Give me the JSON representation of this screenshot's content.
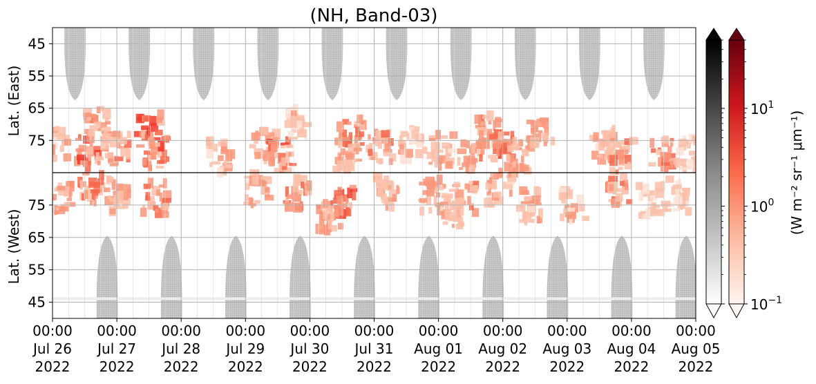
{
  "chart_data": {
    "type": "heatmap",
    "title": "(NH, Band-03)",
    "ylabel_top": "Lat. (East)",
    "ylabel_bottom": "Lat. (West)",
    "x_ticks": [
      {
        "time": "00:00",
        "date": "Jul 26",
        "year": "2022"
      },
      {
        "time": "00:00",
        "date": "Jul 27",
        "year": "2022"
      },
      {
        "time": "00:00",
        "date": "Jul 28",
        "year": "2022"
      },
      {
        "time": "00:00",
        "date": "Jul 29",
        "year": "2022"
      },
      {
        "time": "00:00",
        "date": "Jul 30",
        "year": "2022"
      },
      {
        "time": "00:00",
        "date": "Jul 31",
        "year": "2022"
      },
      {
        "time": "00:00",
        "date": "Aug 01",
        "year": "2022"
      },
      {
        "time": "00:00",
        "date": "Aug 02",
        "year": "2022"
      },
      {
        "time": "00:00",
        "date": "Aug 03",
        "year": "2022"
      },
      {
        "time": "00:00",
        "date": "Aug 04",
        "year": "2022"
      },
      {
        "time": "00:00",
        "date": "Aug 05",
        "year": "2022"
      }
    ],
    "x_range": [
      "2022-07-26 00:00",
      "2022-08-05 00:00"
    ],
    "y_top_ticks": [
      "45",
      "55",
      "65",
      "75"
    ],
    "y_bottom_ticks": [
      "75",
      "65",
      "55",
      "45"
    ],
    "y_top_range": [
      40,
      85
    ],
    "y_bottom_range": [
      85,
      40
    ],
    "colorbar_gray_label": "",
    "colorbar_red_label": "(W m⁻² sr⁻¹ μm⁻¹)",
    "colorbar_scale": "log",
    "colorbar_range": [
      0.1,
      50
    ],
    "colorbar_ticks": [
      {
        "base": "10",
        "exp": "−1",
        "value": 0.1
      },
      {
        "base": "10",
        "exp": "0",
        "value": 1
      },
      {
        "base": "10",
        "exp": "1",
        "value": 10
      }
    ],
    "colors": {
      "gray_fill": "#c8c8c8",
      "red_high": "#e8321f",
      "red_mid": "#f88a6f",
      "red_low": "#fde0d3",
      "gray_cb_top": "#000000",
      "red_cb_top": "#67000d",
      "grid": "#b0b0b0"
    },
    "grid": true,
    "east_gray_lobes_day_offsets": [
      0.35,
      1.35,
      2.35,
      3.35,
      4.35,
      5.35,
      6.35,
      7.35,
      8.35,
      9.35
    ],
    "west_gray_lobes_day_offsets": [
      0.85,
      1.85,
      2.85,
      3.85,
      4.85,
      5.85,
      6.85,
      7.85,
      8.85,
      9.85
    ],
    "east_emission_clusters": [
      {
        "day": 0.05,
        "lat": 76,
        "intensity": 0.45
      },
      {
        "day": 0.55,
        "lat": 79,
        "intensity": 0.85
      },
      {
        "day": 0.7,
        "lat": 70,
        "intensity": 0.6
      },
      {
        "day": 1.0,
        "lat": 78,
        "intensity": 0.6
      },
      {
        "day": 1.5,
        "lat": 72,
        "intensity": 1.0
      },
      {
        "day": 1.6,
        "lat": 79,
        "intensity": 0.75
      },
      {
        "day": 2.6,
        "lat": 80,
        "intensity": 0.55
      },
      {
        "day": 3.3,
        "lat": 77,
        "intensity": 0.5
      },
      {
        "day": 3.55,
        "lat": 80,
        "intensity": 0.75
      },
      {
        "day": 3.8,
        "lat": 70,
        "intensity": 0.4
      },
      {
        "day": 4.6,
        "lat": 79,
        "intensity": 0.55
      },
      {
        "day": 4.65,
        "lat": 73,
        "intensity": 0.7
      },
      {
        "day": 5.1,
        "lat": 77,
        "intensity": 0.6
      },
      {
        "day": 5.6,
        "lat": 76,
        "intensity": 0.4
      },
      {
        "day": 6.05,
        "lat": 78,
        "intensity": 0.5
      },
      {
        "day": 6.5,
        "lat": 79,
        "intensity": 0.55
      },
      {
        "day": 6.75,
        "lat": 72,
        "intensity": 0.6
      },
      {
        "day": 7.0,
        "lat": 77,
        "intensity": 0.75
      },
      {
        "day": 7.25,
        "lat": 80,
        "intensity": 0.55
      },
      {
        "day": 7.6,
        "lat": 73,
        "intensity": 0.5
      },
      {
        "day": 8.6,
        "lat": 76,
        "intensity": 0.5
      },
      {
        "day": 8.85,
        "lat": 80,
        "intensity": 0.6
      },
      {
        "day": 9.5,
        "lat": 79,
        "intensity": 0.7
      },
      {
        "day": 9.9,
        "lat": 79,
        "intensity": 0.35
      }
    ],
    "west_emission_clusters": [
      {
        "day": 0.1,
        "lat": 77,
        "intensity": 0.55
      },
      {
        "day": 0.6,
        "lat": 80,
        "intensity": 0.7
      },
      {
        "day": 1.0,
        "lat": 78,
        "intensity": 0.5
      },
      {
        "day": 1.6,
        "lat": 77,
        "intensity": 0.65
      },
      {
        "day": 3.2,
        "lat": 80,
        "intensity": 0.55
      },
      {
        "day": 3.8,
        "lat": 79,
        "intensity": 0.65
      },
      {
        "day": 4.5,
        "lat": 76,
        "intensity": 0.9
      },
      {
        "day": 4.3,
        "lat": 72,
        "intensity": 0.6
      },
      {
        "day": 5.2,
        "lat": 79,
        "intensity": 0.5
      },
      {
        "day": 5.9,
        "lat": 78,
        "intensity": 0.55
      },
      {
        "day": 6.4,
        "lat": 77,
        "intensity": 0.65
      },
      {
        "day": 6.2,
        "lat": 73,
        "intensity": 0.45
      },
      {
        "day": 6.95,
        "lat": 80,
        "intensity": 0.5
      },
      {
        "day": 7.4,
        "lat": 75,
        "intensity": 0.5
      },
      {
        "day": 8.1,
        "lat": 75,
        "intensity": 0.45
      },
      {
        "day": 8.8,
        "lat": 80,
        "intensity": 0.6
      },
      {
        "day": 9.3,
        "lat": 76,
        "intensity": 0.35
      },
      {
        "day": 9.7,
        "lat": 78,
        "intensity": 0.35
      }
    ]
  }
}
